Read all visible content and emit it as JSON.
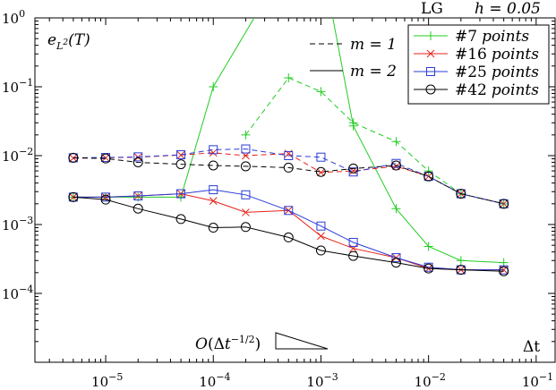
{
  "chart_data": {
    "type": "line",
    "title": "LG    h = 0.05",
    "header": {
      "method": "LG",
      "param": "h = 0.05"
    },
    "ylabel": "e_{L²}(T)",
    "xlabel": "Δt",
    "xscale": "log",
    "yscale": "log",
    "xlim": [
      2.2e-06,
      0.15
    ],
    "ylim": [
      1e-05,
      1
    ],
    "x_ticks": [
      1e-05,
      0.0001,
      0.001,
      0.01,
      0.1
    ],
    "x_tick_labels": [
      {
        "base": "10",
        "exp": "−5"
      },
      {
        "base": "10",
        "exp": "−4"
      },
      {
        "base": "10",
        "exp": "−3"
      },
      {
        "base": "10",
        "exp": "−2"
      },
      {
        "base": "10",
        "exp": "−1"
      }
    ],
    "y_ticks": [
      0.0001,
      0.001,
      0.01,
      0.1,
      1
    ],
    "y_tick_labels": [
      {
        "base": "10",
        "exp": "−4"
      },
      {
        "base": "10",
        "exp": "−3"
      },
      {
        "base": "10",
        "exp": "−2"
      },
      {
        "base": "10",
        "exp": "−1"
      },
      {
        "base": "10",
        "exp": "0"
      }
    ],
    "style_legend": [
      {
        "label": "m = 1",
        "dash": "dashed"
      },
      {
        "label": "m = 2",
        "dash": "solid"
      }
    ],
    "legend_position": "top-right",
    "annotation": "O(Δt^{−1/2})",
    "annotation_slope": -0.5,
    "series": [
      {
        "name": "#7  points",
        "color": "#22cc22",
        "marker": "plus",
        "m": 1,
        "x": [
          0.0002,
          0.0005,
          0.001,
          0.002,
          0.005,
          0.01,
          0.02,
          0.05
        ],
        "y": [
          0.02,
          0.135,
          0.085,
          0.03,
          0.016,
          0.006,
          0.0028,
          0.002
        ]
      },
      {
        "name": "#7  points",
        "color": "#22cc22",
        "marker": "plus",
        "m": 2,
        "x": [
          5e-06,
          1e-05,
          2e-05,
          5e-05,
          0.0001,
          0.0003,
          0.0012,
          0.002,
          0.005,
          0.01,
          0.02,
          0.05
        ],
        "y": [
          0.0025,
          0.0025,
          0.0025,
          0.0025,
          0.1,
          1.8,
          1.8,
          0.027,
          0.0017,
          0.00048,
          0.0003,
          0.00028
        ]
      },
      {
        "name": "#16 points",
        "color": "#e8221b",
        "marker": "cross",
        "m": 1,
        "x": [
          5e-06,
          1e-05,
          2e-05,
          5e-05,
          0.0001,
          0.0002,
          0.0005,
          0.001,
          0.002,
          0.005,
          0.01,
          0.02,
          0.05
        ],
        "y": [
          0.0092,
          0.0093,
          0.0095,
          0.0102,
          0.011,
          0.01,
          0.0107,
          0.0057,
          0.006,
          0.007,
          0.005,
          0.0028,
          0.002
        ]
      },
      {
        "name": "#16 points",
        "color": "#e8221b",
        "marker": "cross",
        "m": 2,
        "x": [
          5e-06,
          1e-05,
          2e-05,
          5e-05,
          0.0001,
          0.0002,
          0.0005,
          0.001,
          0.002,
          0.005,
          0.01,
          0.02,
          0.05
        ],
        "y": [
          0.0025,
          0.0025,
          0.0026,
          0.0028,
          0.0022,
          0.0015,
          0.0016,
          0.00068,
          0.00045,
          0.00033,
          0.00023,
          0.00022,
          0.00022
        ]
      },
      {
        "name": "#25 points",
        "color": "#2a3dd6",
        "marker": "square",
        "m": 1,
        "x": [
          5e-06,
          1e-05,
          2e-05,
          5e-05,
          0.0001,
          0.0002,
          0.0005,
          0.001,
          0.002,
          0.005,
          0.01,
          0.02,
          0.05
        ],
        "y": [
          0.0093,
          0.0094,
          0.0096,
          0.0103,
          0.0122,
          0.0125,
          0.01,
          0.0095,
          0.0058,
          0.0077,
          0.005,
          0.0028,
          0.002
        ]
      },
      {
        "name": "#25 points",
        "color": "#2a3dd6",
        "marker": "square",
        "m": 2,
        "x": [
          5e-06,
          1e-05,
          2e-05,
          5e-05,
          0.0001,
          0.0002,
          0.0005,
          0.001,
          0.002,
          0.005,
          0.01,
          0.02,
          0.05
        ],
        "y": [
          0.0025,
          0.0025,
          0.0026,
          0.0028,
          0.0032,
          0.0027,
          0.0016,
          0.00095,
          0.00055,
          0.00033,
          0.00024,
          0.00022,
          0.00022
        ]
      },
      {
        "name": "#42 points",
        "color": "#000000",
        "marker": "circle",
        "m": 1,
        "x": [
          5e-06,
          1e-05,
          2e-05,
          5e-05,
          0.0001,
          0.0002,
          0.0005,
          0.001,
          0.002,
          0.005,
          0.01,
          0.02,
          0.05
        ],
        "y": [
          0.0093,
          0.0091,
          0.008,
          0.0075,
          0.0072,
          0.007,
          0.0067,
          0.0058,
          0.0065,
          0.0072,
          0.005,
          0.0028,
          0.002
        ]
      },
      {
        "name": "#42 points",
        "color": "#000000",
        "marker": "circle",
        "m": 2,
        "x": [
          5e-06,
          1e-05,
          2e-05,
          5e-05,
          0.0001,
          0.0002,
          0.0005,
          0.001,
          0.002,
          0.005,
          0.01,
          0.02,
          0.05
        ],
        "y": [
          0.0025,
          0.0023,
          0.0017,
          0.0012,
          0.0009,
          0.00092,
          0.00065,
          0.00042,
          0.00035,
          0.00028,
          0.00023,
          0.00022,
          0.00021
        ]
      }
    ],
    "legend_entries": [
      {
        "num": "#7",
        "word": "points",
        "color": "#22cc22",
        "marker": "plus"
      },
      {
        "num": "#16",
        "word": "points",
        "color": "#e8221b",
        "marker": "cross"
      },
      {
        "num": "#25",
        "word": "points",
        "color": "#2a3dd6",
        "marker": "square"
      },
      {
        "num": "#42",
        "word": "points",
        "color": "#000000",
        "marker": "circle"
      }
    ]
  }
}
